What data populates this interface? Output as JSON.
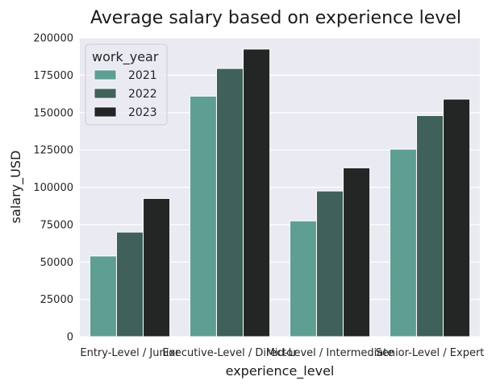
{
  "chart_data": {
    "type": "bar",
    "title": "Average salary based on experience level",
    "xlabel": "experience_level",
    "ylabel": "salary_USD",
    "categories": [
      "Entry-Level / Junior",
      "Executive-Level / Director",
      "Mid-Level / Intermediate",
      "Senior-Level / Expert"
    ],
    "series": [
      {
        "name": "2021",
        "values": [
          54000,
          161000,
          77500,
          125500
        ],
        "color": "#5f9f93"
      },
      {
        "name": "2022",
        "values": [
          70000,
          179500,
          97500,
          148000
        ],
        "color": "#3f6159"
      },
      {
        "name": "2023",
        "values": [
          92500,
          192500,
          113000,
          159000
        ],
        "color": "#232625"
      }
    ],
    "ylim": [
      0,
      200000
    ],
    "yticks": [
      0,
      25000,
      50000,
      75000,
      100000,
      125000,
      150000,
      175000,
      200000
    ],
    "grid": true,
    "legend": {
      "title": "work_year",
      "position": "top-left"
    },
    "background": "#eaeaf2"
  }
}
